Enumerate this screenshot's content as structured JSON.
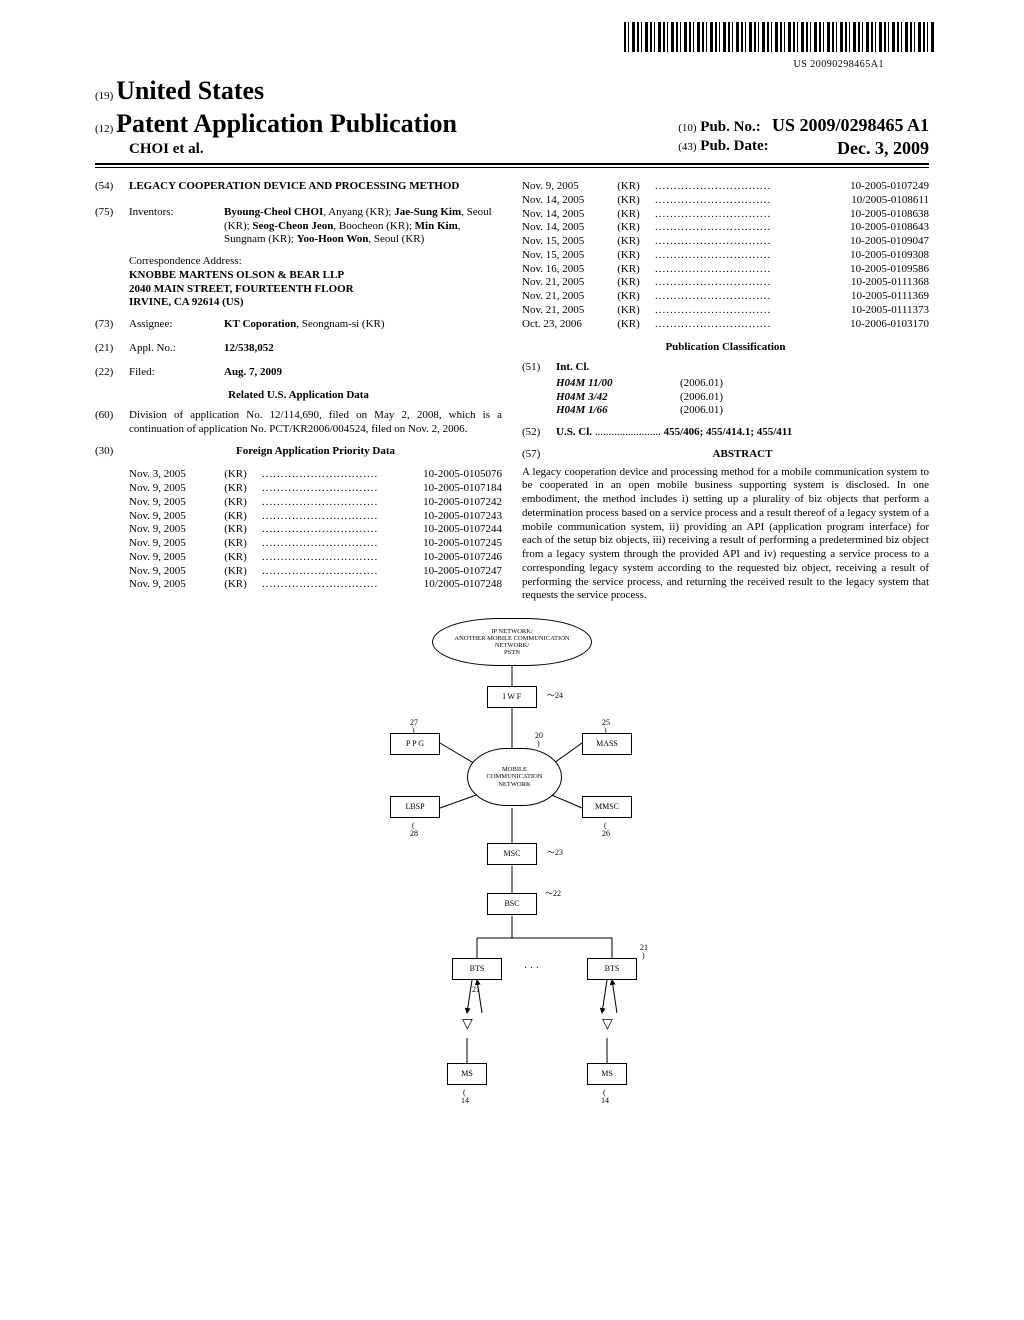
{
  "barcode_text": "US 20090298465A1",
  "header": {
    "code19": "(19)",
    "country": "United States",
    "code12": "(12)",
    "pubtype": "Patent Application Publication",
    "authors": "CHOI  et al.",
    "code10": "(10)",
    "pubno_label": "Pub. No.:",
    "pubno": "US 2009/0298465 A1",
    "code43": "(43)",
    "pubdate_label": "Pub. Date:",
    "pubdate": "Dec. 3, 2009"
  },
  "f54": {
    "code": "(54)",
    "text": "LEGACY COOPERATION DEVICE AND PROCESSING METHOD"
  },
  "f75": {
    "code": "(75)",
    "label": "Inventors:",
    "names": [
      "Byoung-Cheol CHOI, Anyang (KR); Jae-Sung Kim, Seoul (KR); Seog-Cheon Jeon, Boocheon (KR); Min Kim, Sungnam (KR); Yoo-Hoon Won, Seoul (KR)"
    ]
  },
  "correspondence": {
    "label": "Correspondence Address:",
    "l1": "KNOBBE MARTENS OLSON & BEAR LLP",
    "l2": "2040 MAIN STREET, FOURTEENTH FLOOR",
    "l3": "IRVINE, CA 92614 (US)"
  },
  "f73": {
    "code": "(73)",
    "label": "Assignee:",
    "value": "KT Coporation, Seongnam-si (KR)"
  },
  "f21": {
    "code": "(21)",
    "label": "Appl. No.:",
    "value": "12/538,052"
  },
  "f22": {
    "code": "(22)",
    "label": "Filed:",
    "value": "Aug. 7, 2009"
  },
  "related_title": "Related U.S. Application Data",
  "f60": {
    "code": "(60)",
    "text": "Division of application No. 12/114,690, filed on May 2, 2008, which is a continuation of application No. PCT/KR2006/004524, filed on Nov. 2, 2006."
  },
  "f30": {
    "code": "(30)",
    "title": "Foreign Application Priority Data"
  },
  "priority_left": [
    {
      "date": "Nov. 3, 2005",
      "ctry": "(KR)",
      "num": "10-2005-0105076"
    },
    {
      "date": "Nov. 9, 2005",
      "ctry": "(KR)",
      "num": "10-2005-0107184"
    },
    {
      "date": "Nov. 9, 2005",
      "ctry": "(KR)",
      "num": "10-2005-0107242"
    },
    {
      "date": "Nov. 9, 2005",
      "ctry": "(KR)",
      "num": "10-2005-0107243"
    },
    {
      "date": "Nov. 9, 2005",
      "ctry": "(KR)",
      "num": "10-2005-0107244"
    },
    {
      "date": "Nov. 9, 2005",
      "ctry": "(KR)",
      "num": "10-2005-0107245"
    },
    {
      "date": "Nov. 9, 2005",
      "ctry": "(KR)",
      "num": "10-2005-0107246"
    },
    {
      "date": "Nov. 9, 2005",
      "ctry": "(KR)",
      "num": "10-2005-0107247"
    },
    {
      "date": "Nov. 9, 2005",
      "ctry": "(KR)",
      "num": "10/2005-0107248"
    }
  ],
  "priority_right": [
    {
      "date": "Nov. 9, 2005",
      "ctry": "(KR)",
      "num": "10-2005-0107249"
    },
    {
      "date": "Nov. 14, 2005",
      "ctry": "(KR)",
      "num": "10/2005-0108611"
    },
    {
      "date": "Nov. 14, 2005",
      "ctry": "(KR)",
      "num": "10-2005-0108638"
    },
    {
      "date": "Nov. 14, 2005",
      "ctry": "(KR)",
      "num": "10-2005-0108643"
    },
    {
      "date": "Nov. 15, 2005",
      "ctry": "(KR)",
      "num": "10-2005-0109047"
    },
    {
      "date": "Nov. 15, 2005",
      "ctry": "(KR)",
      "num": "10-2005-0109308"
    },
    {
      "date": "Nov. 16, 2005",
      "ctry": "(KR)",
      "num": "10-2005-0109586"
    },
    {
      "date": "Nov. 21, 2005",
      "ctry": "(KR)",
      "num": "10-2005-0111368"
    },
    {
      "date": "Nov. 21, 2005",
      "ctry": "(KR)",
      "num": "10-2005-0111369"
    },
    {
      "date": "Nov. 21, 2005",
      "ctry": "(KR)",
      "num": "10-2005-0111373"
    },
    {
      "date": "Oct. 23, 2006",
      "ctry": "(KR)",
      "num": "10-2006-0103170"
    }
  ],
  "pubclass_title": "Publication Classification",
  "f51": {
    "code": "(51)",
    "label": "Int. Cl."
  },
  "intcl": [
    {
      "name": "H04M 11/00",
      "year": "(2006.01)"
    },
    {
      "name": "H04M 3/42",
      "year": "(2006.01)"
    },
    {
      "name": "H04M 1/66",
      "year": "(2006.01)"
    }
  ],
  "f52": {
    "code": "(52)",
    "label": "U.S. Cl.",
    "dots": "........................",
    "value": "455/406; 455/414.1; 455/411"
  },
  "f57": {
    "code": "(57)",
    "title": "ABSTRACT"
  },
  "abstract": "A legacy cooperation device and processing method for a mobile communication system to be cooperated in an open mobile business supporting system is disclosed. In one embodiment, the method includes i) setting up a plurality of biz objects that perform a determination process based on a service process and a result thereof of a legacy system of a mobile communication system, ii) providing an API (application program interface) for each of the setup biz objects, iii) receiving a result of performing a predetermined biz object from a legacy system through the provided API and iv) requesting a service process to a corresponding legacy system according to the requested biz object, receiving a result of performing the service process, and returning the received result to the legacy system that requests the service process.",
  "diagram": {
    "cloud_top": "IP NETWORK/\nANOTHER MOBILE COMMUNICATION NETWORK/\nPSTN",
    "cloud_mid": "MOBILE\nCOMMUNICATION\nNETWORK",
    "nodes": {
      "iwf": "I W F",
      "iwf_num": "24",
      "ppg": "P P G",
      "ppg_num": "27",
      "mass": "MASS",
      "mass_num": "25",
      "lbsp": "LBSP",
      "lbsp_num": "28",
      "mmsc": "MMSC",
      "mmsc_num": "26",
      "msc": "MSC",
      "msc_num": "23",
      "bsc": "BSC",
      "bsc_num": "22",
      "bts": "BTS",
      "bts_num": "21",
      "ms": "MS",
      "ms_num": "14",
      "dots": "· · ·",
      "cloud_mid_num": "20"
    }
  }
}
